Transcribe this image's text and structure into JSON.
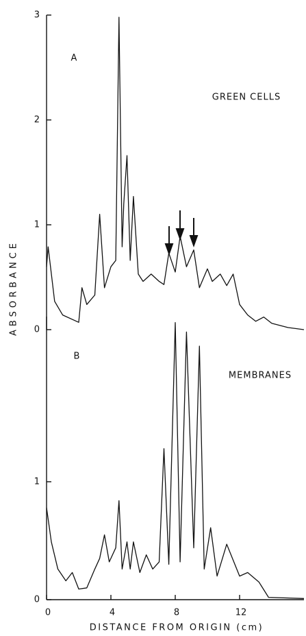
{
  "chart_data": [
    {
      "type": "line",
      "ylabel": "ABSORBANCE",
      "label": "A",
      "annotation": "GREEN CELLS",
      "x": [
        0,
        0.1,
        0.5,
        1,
        2,
        2.2,
        2.5,
        3,
        3.3,
        3.6,
        4,
        4.3,
        4.5,
        4.7,
        4.8,
        5.0,
        5.2,
        5.4,
        5.7,
        6,
        6.5,
        7,
        7.3,
        7.6,
        8.0,
        8.3,
        8.7,
        9.15,
        9.5,
        10,
        10.3,
        10.8,
        11.2,
        11.6,
        12,
        12.5,
        13,
        13.5,
        14,
        15,
        16
      ],
      "series": [
        {
          "color": "#111111",
          "values": [
            0.6,
            0.79,
            0.27,
            0.14,
            0.07,
            0.4,
            0.24,
            0.33,
            1.1,
            0.4,
            0.6,
            0.66,
            2.98,
            0.79,
            1.2,
            1.66,
            0.66,
            1.27,
            0.53,
            0.46,
            0.53,
            0.46,
            0.43,
            0.73,
            0.55,
            0.89,
            0.6,
            0.76,
            0.4,
            0.58,
            0.46,
            0.53,
            0.42,
            0.53,
            0.24,
            0.14,
            0.08,
            0.12,
            0.06,
            0.02,
            0
          ]
        }
      ],
      "xlim": [
        0,
        16
      ],
      "ylim": [
        0,
        3
      ],
      "yticks": [
        0,
        1,
        2,
        3
      ]
    },
    {
      "type": "line",
      "xlabel": "DISTANCE FROM ORIGIN (cm)",
      "label": "B",
      "annotation": "MEMBRANES",
      "x": [
        0,
        0.3,
        0.7,
        1.2,
        1.6,
        2,
        2.5,
        3,
        3.3,
        3.6,
        3.9,
        4.3,
        4.5,
        4.7,
        5,
        5.2,
        5.4,
        5.8,
        6.2,
        6.6,
        7.0,
        7.3,
        7.6,
        8.0,
        8.3,
        8.7,
        9.15,
        9.5,
        9.8,
        10.2,
        10.6,
        11.2,
        12,
        12.5,
        13.2,
        13.8,
        16
      ],
      "series": [
        {
          "color": "#111111",
          "values": [
            0.78,
            0.49,
            0.26,
            0.16,
            0.23,
            0.09,
            0.1,
            0.26,
            0.35,
            0.55,
            0.32,
            0.44,
            0.84,
            0.26,
            0.49,
            0.26,
            0.49,
            0.23,
            0.38,
            0.26,
            0.32,
            1.28,
            0.3,
            2.35,
            0.32,
            2.27,
            0.44,
            2.15,
            0.26,
            0.61,
            0.2,
            0.47,
            0.2,
            0.23,
            0.15,
            0.02,
            0.01
          ]
        }
      ],
      "xlim": [
        0,
        16
      ],
      "ylim": [
        0,
        2.4
      ],
      "yticks": [
        0,
        1
      ],
      "xticks": [
        0,
        4,
        8,
        12
      ]
    }
  ]
}
